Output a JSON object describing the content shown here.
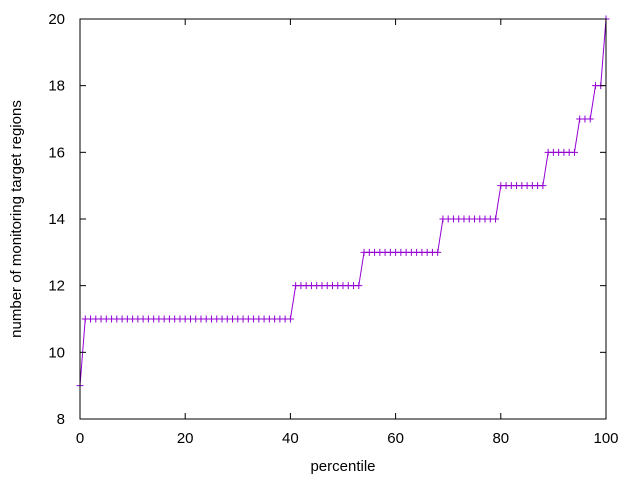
{
  "chart_data": {
    "type": "line",
    "title": "",
    "xlabel": "percentile",
    "ylabel": "number of monitoring target regions",
    "xlim": [
      0,
      100
    ],
    "ylim": [
      8,
      20
    ],
    "xticks": [
      0,
      20,
      40,
      60,
      80,
      100
    ],
    "yticks": [
      8,
      10,
      12,
      14,
      16,
      18,
      20
    ],
    "xtick_labels": [
      "0",
      "20",
      "40",
      "60",
      "80",
      "100"
    ],
    "ytick_labels": [
      "8",
      "10",
      "12",
      "14",
      "16",
      "18",
      "20"
    ],
    "grid": false,
    "legend": "none",
    "marker": "plus",
    "series": [
      {
        "color": "#9400d3",
        "steps": [
          {
            "x_from": 0,
            "x_to": 0,
            "y": 9
          },
          {
            "x_from": 1,
            "x_to": 40,
            "y": 11
          },
          {
            "x_from": 41,
            "x_to": 53,
            "y": 12
          },
          {
            "x_from": 54,
            "x_to": 68,
            "y": 13
          },
          {
            "x_from": 69,
            "x_to": 79,
            "y": 14
          },
          {
            "x_from": 80,
            "x_to": 88,
            "y": 15
          },
          {
            "x_from": 89,
            "x_to": 94,
            "y": 16
          },
          {
            "x_from": 95,
            "x_to": 97,
            "y": 17
          },
          {
            "x_from": 98,
            "x_to": 99,
            "y": 18
          },
          {
            "x_from": 100,
            "x_to": 100,
            "y": 20
          }
        ]
      }
    ]
  }
}
